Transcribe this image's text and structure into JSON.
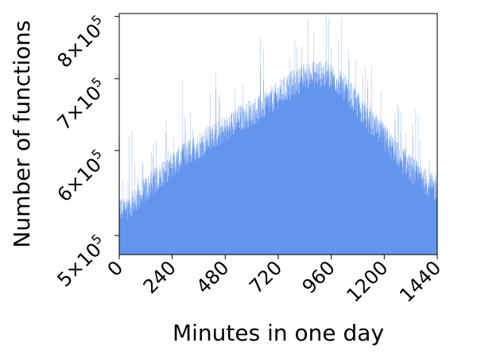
{
  "chart_data": {
    "type": "bar",
    "title": "",
    "xlabel": "Minutes in one day",
    "ylabel": "Number of functions",
    "xlim": [
      0,
      1440
    ],
    "ylim": [
      480000,
      805000
    ],
    "y_scale": "log",
    "grid": false,
    "legend": "none",
    "bar_color": "#6495ED",
    "bin_width_minutes": 1,
    "x_ticks": [
      0,
      240,
      480,
      720,
      960,
      1200,
      1440
    ],
    "x_tick_labels": [
      "0",
      "240",
      "480",
      "720",
      "960",
      "1200",
      "1440"
    ],
    "y_ticks": [
      500000,
      600000,
      700000,
      800000
    ],
    "y_tick_labels": [
      {
        "mantissa": "5",
        "times": "×10",
        "exp": "5"
      },
      {
        "mantissa": "6",
        "times": "×10",
        "exp": "5"
      },
      {
        "mantissa": "7",
        "times": "×10",
        "exp": "5"
      },
      {
        "mantissa": "8",
        "times": "×10",
        "exp": "5"
      }
    ],
    "trend_points": [
      [
        0,
        530000
      ],
      [
        60,
        540000
      ],
      [
        120,
        555000
      ],
      [
        180,
        570000
      ],
      [
        240,
        585000
      ],
      [
        300,
        598000
      ],
      [
        360,
        610000
      ],
      [
        420,
        622000
      ],
      [
        480,
        632000
      ],
      [
        540,
        645000
      ],
      [
        600,
        655000
      ],
      [
        660,
        665000
      ],
      [
        720,
        680000
      ],
      [
        780,
        695000
      ],
      [
        840,
        708000
      ],
      [
        900,
        712000
      ],
      [
        960,
        708000
      ],
      [
        1020,
        690000
      ],
      [
        1080,
        665000
      ],
      [
        1140,
        640000
      ],
      [
        1200,
        620000
      ],
      [
        1260,
        600000
      ],
      [
        1320,
        580000
      ],
      [
        1380,
        565000
      ],
      [
        1440,
        555000
      ]
    ]
  }
}
